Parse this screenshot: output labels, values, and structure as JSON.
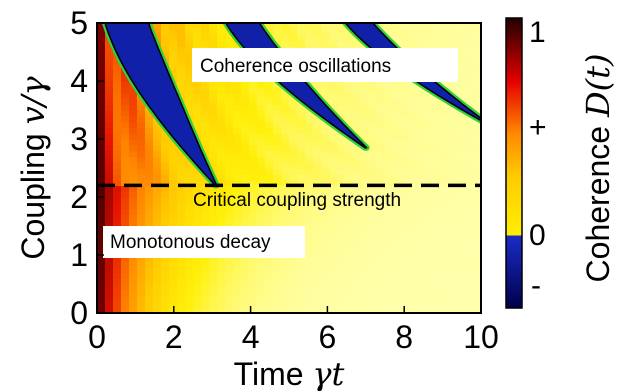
{
  "chart_data": {
    "type": "heatmap",
    "title": "",
    "xlabel": {
      "prefix": "Time ",
      "math": "γt"
    },
    "ylabel": {
      "prefix": "Coupling  ",
      "math": "v/γ"
    },
    "xlim": [
      0,
      10
    ],
    "ylim": [
      0,
      5
    ],
    "xticks": [
      "0",
      "2",
      "4",
      "6",
      "8",
      "10"
    ],
    "yticks": [
      "0",
      "1",
      "2",
      "3",
      "4",
      "5"
    ],
    "critical_coupling": 2.2,
    "annotations": {
      "oscillations": "Coherence oscillations",
      "critical": "Critical coupling strength",
      "decay": "Monotonous decay"
    },
    "colorbar": {
      "label_prefix": "Coherence ",
      "label_math": "D(t)",
      "ticks": [
        "1",
        "+",
        "0",
        "-"
      ],
      "colors": {
        "dark_red": "#2a0000",
        "red": "#e60000",
        "orange": "#ff8a00",
        "yellow": "#ffef00",
        "light_yellow": "#ffffa0",
        "blue": "#1020b0",
        "navy": "#00005a",
        "contour_green": "#30d040"
      }
    },
    "blue_regions": [
      {
        "t_start": 0.65,
        "t_tip": 3.1,
        "v_tip": 2.2,
        "width": 0.55
      },
      {
        "t_start": 3.55,
        "t_tip": 7.0,
        "v_tip": 2.85,
        "width": 0.42
      },
      {
        "t_start": 6.5,
        "t_tip": 10.2,
        "v_tip": 3.25,
        "width": 0.34
      }
    ]
  }
}
